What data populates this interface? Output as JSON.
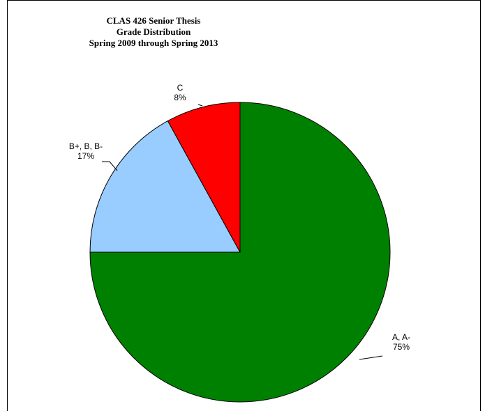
{
  "chart_data": {
    "type": "pie",
    "title": [
      "CLAS 426 Senior Thesis",
      "Grade Distribution",
      "Spring 2009 through Spring 2013"
    ],
    "slices": [
      {
        "label": "A, A-",
        "value": 75,
        "pct_label": "75%",
        "color": "#008000"
      },
      {
        "label": "B+, B, B-",
        "value": 17,
        "pct_label": "17%",
        "color": "#99ccff"
      },
      {
        "label": "C",
        "value": 8,
        "pct_label": "8%",
        "color": "#ff0000"
      }
    ],
    "start_angle_deg": 0,
    "direction": "clockwise",
    "data_labels": true,
    "legend": "none"
  }
}
